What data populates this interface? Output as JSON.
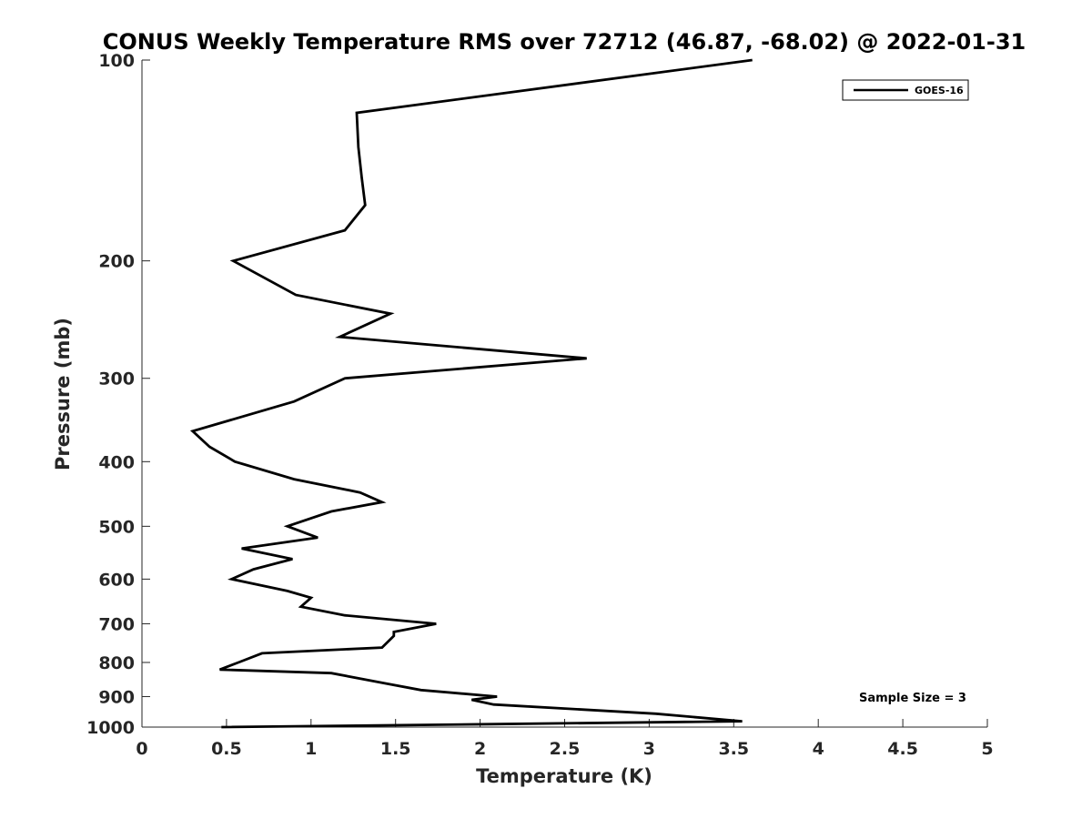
{
  "chart_data": {
    "type": "line",
    "title": "CONUS Weekly Temperature RMS over 72712 (46.87, -68.02) @ 2022-01-31",
    "xlabel": "Temperature (K)",
    "ylabel": "Pressure (mb)",
    "xlim": [
      0,
      5
    ],
    "ylim": [
      100,
      1000
    ],
    "y_scale": "log",
    "y_reversed": true,
    "x_ticks": [
      0,
      0.5,
      1,
      1.5,
      2,
      2.5,
      3,
      3.5,
      4,
      4.5,
      5
    ],
    "x_tick_labels": [
      "0",
      "0.5",
      "1",
      "1.5",
      "2",
      "2.5",
      "3",
      "3.5",
      "4",
      "4.5",
      "5"
    ],
    "y_ticks": [
      100,
      200,
      300,
      400,
      500,
      600,
      700,
      800,
      900,
      1000
    ],
    "y_tick_labels": [
      "100",
      "200",
      "300",
      "400",
      "500",
      "600",
      "700",
      "800",
      "900",
      "1000"
    ],
    "grid": false,
    "legend_position": "top-right",
    "series": [
      {
        "name": "GOES-16",
        "color": "#000000",
        "points": [
          [
            3.61,
            100
          ],
          [
            1.27,
            120
          ],
          [
            1.28,
            135
          ],
          [
            1.3,
            150
          ],
          [
            1.32,
            165
          ],
          [
            1.2,
            180
          ],
          [
            0.54,
            200
          ],
          [
            0.91,
            225
          ],
          [
            1.47,
            240
          ],
          [
            1.17,
            260
          ],
          [
            2.63,
            280
          ],
          [
            1.2,
            300
          ],
          [
            0.9,
            325
          ],
          [
            0.3,
            360
          ],
          [
            0.4,
            380
          ],
          [
            0.55,
            400
          ],
          [
            0.9,
            425
          ],
          [
            1.29,
            445
          ],
          [
            1.42,
            460
          ],
          [
            1.12,
            475
          ],
          [
            0.86,
            500
          ],
          [
            1.04,
            520
          ],
          [
            0.59,
            540
          ],
          [
            0.89,
            560
          ],
          [
            0.66,
            580
          ],
          [
            0.53,
            600
          ],
          [
            0.86,
            625
          ],
          [
            1.0,
            640
          ],
          [
            0.94,
            660
          ],
          [
            1.2,
            680
          ],
          [
            1.74,
            700
          ],
          [
            1.49,
            720
          ],
          [
            1.49,
            730
          ],
          [
            1.42,
            760
          ],
          [
            0.71,
            775
          ],
          [
            0.57,
            800
          ],
          [
            0.46,
            820
          ],
          [
            1.12,
            830
          ],
          [
            1.44,
            860
          ],
          [
            1.65,
            880
          ],
          [
            2.1,
            900
          ],
          [
            1.95,
            910
          ],
          [
            2.08,
            925
          ],
          [
            3.04,
            955
          ],
          [
            3.55,
            980
          ],
          [
            2.05,
            990
          ],
          [
            0.47,
            1000
          ]
        ]
      }
    ],
    "annotation": "Sample Size = 3"
  }
}
